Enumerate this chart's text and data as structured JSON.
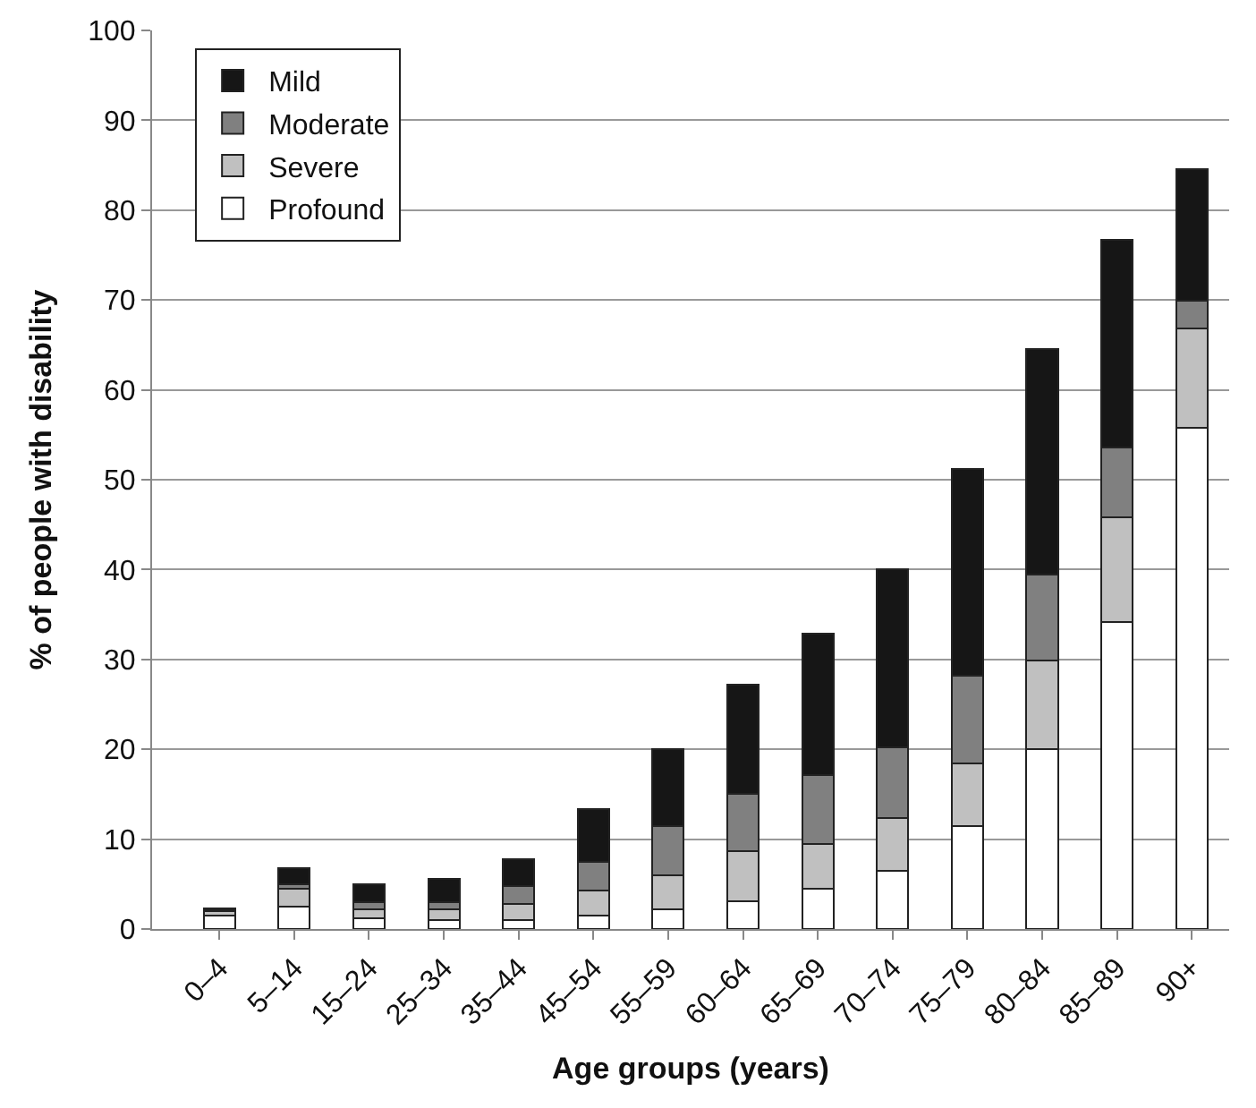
{
  "chart_data": {
    "type": "bar",
    "stacked": true,
    "xlabel": "Age groups (years)",
    "ylabel": "% of people with disability",
    "categories": [
      "0–4",
      "5–14",
      "15–24",
      "25–34",
      "35–44",
      "45–54",
      "55–59",
      "60–64",
      "65–69",
      "70–74",
      "75–79",
      "80–84",
      "85–89",
      "90+"
    ],
    "series": [
      {
        "name": "Profound",
        "color": "#ffffff",
        "values": [
          1.5,
          2.5,
          1.2,
          1.0,
          1.0,
          1.5,
          2.2,
          3.1,
          4.5,
          6.5,
          11.5,
          20.0,
          34.2,
          55.8
        ]
      },
      {
        "name": "Severe",
        "color": "#c0c0c0",
        "values": [
          0.5,
          2.0,
          1.0,
          1.2,
          1.8,
          2.8,
          3.8,
          5.6,
          5.0,
          5.9,
          6.9,
          9.9,
          11.6,
          11.0
        ]
      },
      {
        "name": "Moderate",
        "color": "#808080",
        "values": [
          0.2,
          0.5,
          0.8,
          0.8,
          2.0,
          3.2,
          5.5,
          6.3,
          7.6,
          7.8,
          9.8,
          9.5,
          7.8,
          3.1
        ]
      },
      {
        "name": "Mild",
        "color": "#161616",
        "values": [
          0.1,
          1.8,
          2.0,
          2.6,
          3.0,
          5.8,
          8.5,
          12.2,
          15.8,
          19.8,
          23.0,
          25.1,
          23.1,
          14.7
        ]
      }
    ],
    "ylim": [
      0,
      100
    ],
    "yticks": [
      0,
      10,
      20,
      30,
      40,
      50,
      60,
      70,
      80,
      90,
      100
    ],
    "grid": "y",
    "legend": "top left"
  }
}
